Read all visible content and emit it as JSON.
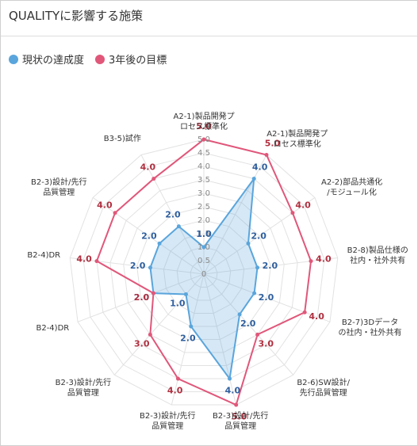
{
  "chart_data": {
    "type": "radar",
    "title": "QUALITYに影響する施策",
    "categories": [
      "A2-1)製品開発プ\nロセス標準化",
      "A2-1)製品開発プ\nロセス標準化",
      "A2-2)部品共通化\n/モジュール化",
      "B2-8)製品仕様の\n社内・社外共有",
      "B2-7)3Dデータ\nの社内・社外共有",
      "B2-6)SW設計/\n先行品質管理",
      "B2-3)設計/先行\n品質管理",
      "B2-3)設計/先行\n品質管理",
      "B2-3)設計/先行\n品質管理",
      "B2-4)DR",
      "B2-4)DR",
      "B2-3)設計/先行\n品質管理",
      "B3-5)試作"
    ],
    "series": [
      {
        "name": "現状の達成度",
        "color": "#5aa5dc",
        "values": [
          1,
          4,
          2,
          2,
          2,
          2,
          4,
          2,
          1,
          2,
          2,
          2,
          2
        ],
        "value_labels": [
          "1.0",
          "4.0",
          "2.0",
          "2.0",
          "2.0",
          "2.0",
          "4.0",
          "2.0",
          "1.0",
          "2.0",
          "2.0",
          "2.0",
          "2.0"
        ]
      },
      {
        "name": "3年後の目標",
        "color": "#e0577a",
        "values": [
          5,
          5,
          4,
          4,
          4,
          3,
          5,
          4,
          3,
          2,
          4,
          4,
          4
        ],
        "value_labels": [
          "5.0",
          "5.0",
          "4.0",
          "4.0",
          "4.0",
          "3.0",
          "5.0",
          "4.0",
          "3.0",
          "2.0",
          "4.0",
          "4.0",
          "4.0"
        ]
      }
    ],
    "ylim": [
      0,
      5
    ],
    "yticks": [
      0,
      {
        "value": 0.5,
        "label": "0.5"
      },
      {
        "value": 1,
        "label": "1.0"
      },
      {
        "value": 1.5,
        "label": "1.5"
      },
      {
        "value": 2,
        "label": "2.0"
      },
      {
        "value": 2.5,
        "label": "2.5"
      },
      {
        "value": 3,
        "label": "3.0"
      },
      {
        "value": 3.5,
        "label": "3.5"
      },
      {
        "value": 4,
        "label": "4.0"
      },
      {
        "value": 4.5,
        "label": "4.5"
      },
      {
        "value": 5,
        "label": "5.0"
      }
    ],
    "grid": true
  }
}
